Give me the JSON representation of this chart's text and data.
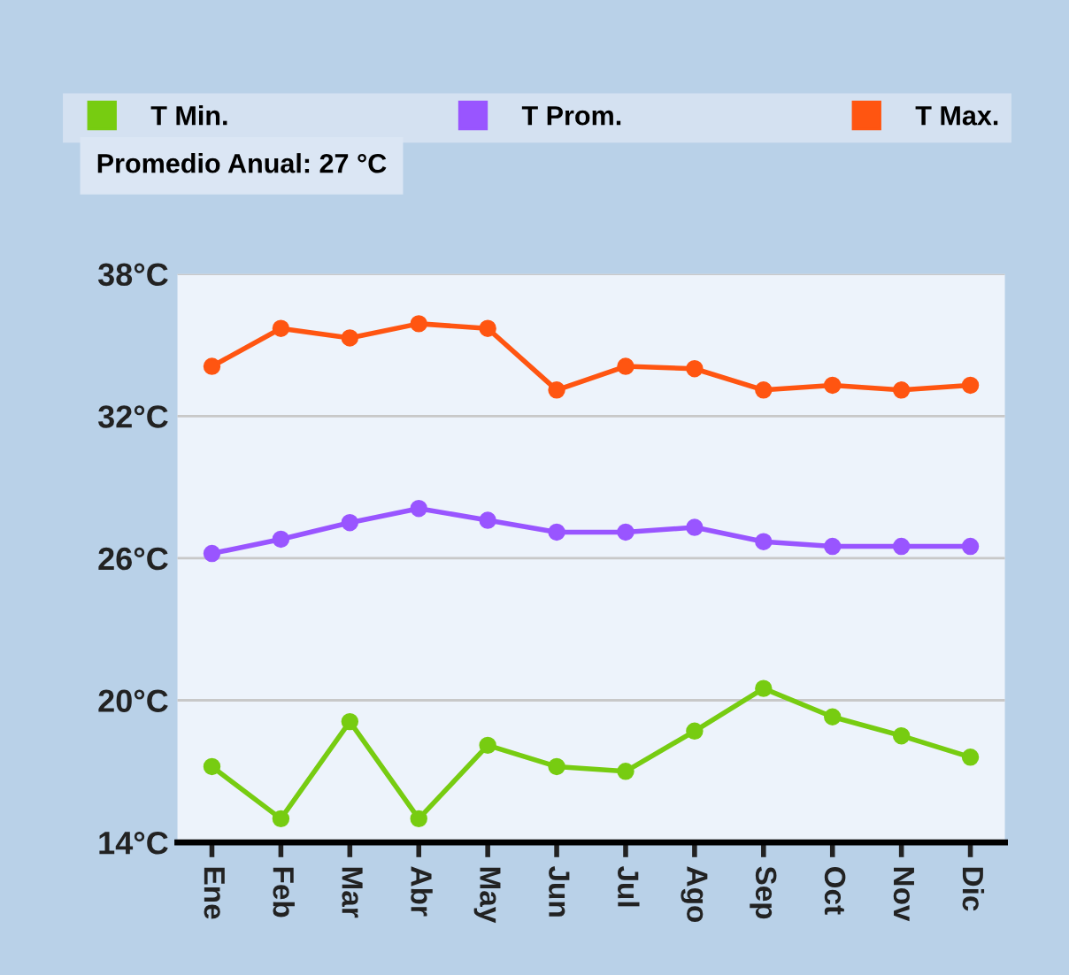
{
  "chart_data": {
    "type": "line",
    "categories": [
      "Ene",
      "Feb",
      "Mar",
      "Abr",
      "May",
      "Jun",
      "Jul",
      "Ago",
      "Sep",
      "Oct",
      "Nov",
      "Dic"
    ],
    "series": [
      {
        "name": "T Min.",
        "color": "#77cc11",
        "values": [
          17.2,
          15.0,
          19.1,
          15.0,
          18.1,
          17.2,
          17.0,
          18.7,
          20.5,
          19.3,
          18.5,
          17.6
        ]
      },
      {
        "name": "T Prom.",
        "color": "#9955ff",
        "values": [
          26.2,
          26.8,
          27.5,
          28.1,
          27.6,
          27.1,
          27.1,
          27.3,
          26.7,
          26.5,
          26.5,
          26.5
        ]
      },
      {
        "name": "T Max.",
        "color": "#ff5511",
        "values": [
          34.1,
          35.7,
          35.3,
          35.9,
          35.7,
          33.1,
          34.1,
          34.0,
          33.1,
          33.3,
          33.1,
          33.3
        ]
      }
    ],
    "ylim": [
      14,
      38
    ],
    "yticks": [
      {
        "value": 14,
        "label": "14°C"
      },
      {
        "value": 20,
        "label": "20°C"
      },
      {
        "value": 26,
        "label": "26°C"
      },
      {
        "value": 32,
        "label": "32°C"
      },
      {
        "value": 38,
        "label": "38°C"
      }
    ],
    "annotations": [
      "Promedio Anual: 27 °C"
    ],
    "grid": "y",
    "legend": "top",
    "marker": "circle",
    "line_style": "solid"
  }
}
